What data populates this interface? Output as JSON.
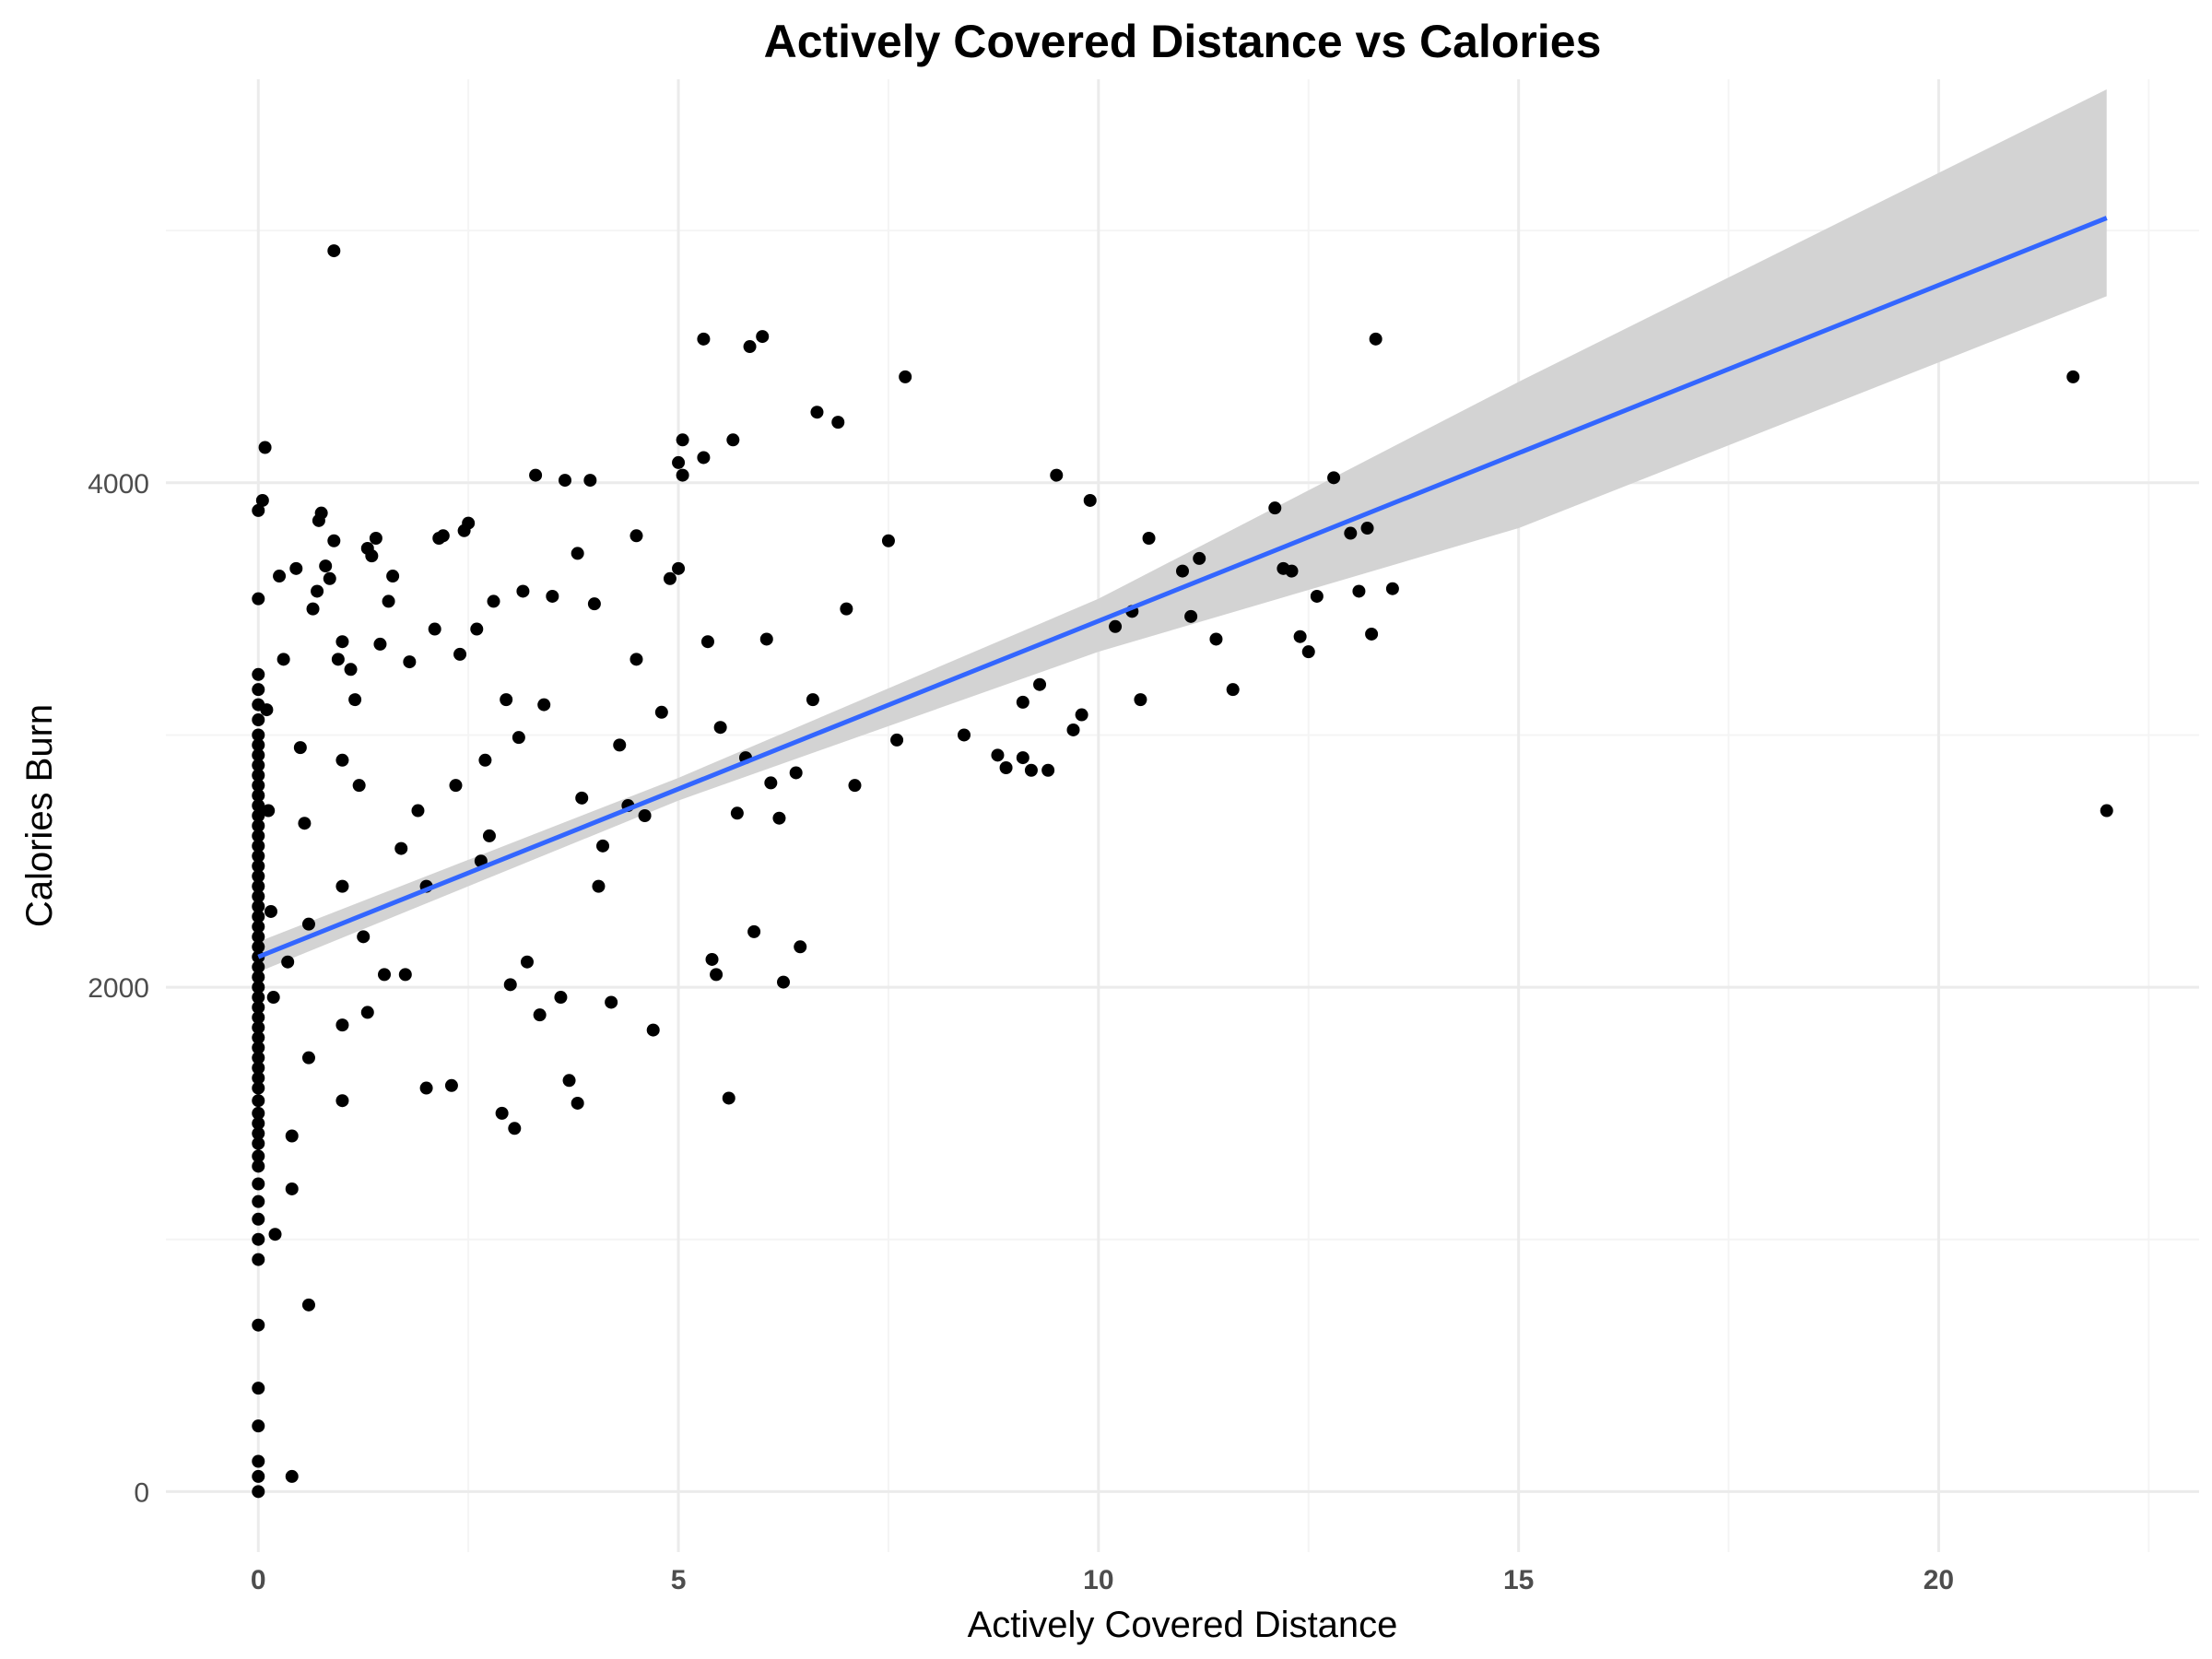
{
  "chart_data": {
    "type": "scatter",
    "title": "Actively Covered Distance vs Calories",
    "xlabel": "Actively Covered Distance",
    "ylabel": "Calories Burn",
    "xlim": [
      -1.1,
      23.1
    ],
    "ylim": [
      -240,
      5600
    ],
    "x_ticks": [
      0,
      5,
      10,
      15,
      20
    ],
    "x_tick_labels": [
      "0",
      "5",
      "10",
      "15",
      "20"
    ],
    "y_ticks": [
      0,
      2000,
      4000
    ],
    "y_tick_labels": [
      "0",
      "2000",
      "4000"
    ],
    "x_minor_ticks": [
      2.5,
      7.5,
      12.5,
      17.5,
      22.5
    ],
    "y_minor_ticks": [
      1000,
      3000,
      5000
    ],
    "grid": true,
    "colors": {
      "points": "#000000",
      "trend_line": "#3366ff",
      "confidence_band": "#d3d3d3",
      "grid_major": "#ebebeb",
      "grid_minor": "#f4f4f4"
    },
    "series": [
      {
        "kind": "points",
        "points": [
          [
            0,
            0
          ],
          [
            0,
            60
          ],
          [
            0,
            120
          ],
          [
            0,
            260
          ],
          [
            0,
            410
          ],
          [
            0,
            660
          ],
          [
            0,
            920
          ],
          [
            0,
            1000
          ],
          [
            0,
            1080
          ],
          [
            0,
            1150
          ],
          [
            0,
            1220
          ],
          [
            0,
            1290
          ],
          [
            0,
            1330
          ],
          [
            0,
            1380
          ],
          [
            0,
            1420
          ],
          [
            0,
            1460
          ],
          [
            0,
            1500
          ],
          [
            0,
            1550
          ],
          [
            0,
            1600
          ],
          [
            0,
            1640
          ],
          [
            0,
            1680
          ],
          [
            0,
            1720
          ],
          [
            0,
            1760
          ],
          [
            0,
            1800
          ],
          [
            0,
            1840
          ],
          [
            0,
            1880
          ],
          [
            0,
            1920
          ],
          [
            0,
            1960
          ],
          [
            0,
            2000
          ],
          [
            0,
            2040
          ],
          [
            0,
            2080
          ],
          [
            0,
            2120
          ],
          [
            0,
            2160
          ],
          [
            0,
            2200
          ],
          [
            0,
            2240
          ],
          [
            0,
            2280
          ],
          [
            0,
            2320
          ],
          [
            0,
            2360
          ],
          [
            0,
            2400
          ],
          [
            0,
            2440
          ],
          [
            0,
            2480
          ],
          [
            0,
            2520
          ],
          [
            0,
            2560
          ],
          [
            0,
            2600
          ],
          [
            0,
            2640
          ],
          [
            0,
            2680
          ],
          [
            0,
            2720
          ],
          [
            0,
            2760
          ],
          [
            0,
            2800
          ],
          [
            0,
            2840
          ],
          [
            0,
            2880
          ],
          [
            0,
            2920
          ],
          [
            0,
            2960
          ],
          [
            0,
            3000
          ],
          [
            0,
            3060
          ],
          [
            0,
            3120
          ],
          [
            0,
            3180
          ],
          [
            0,
            3240
          ],
          [
            0,
            3540
          ],
          [
            0,
            3890
          ],
          [
            0.05,
            3930
          ],
          [
            0.08,
            4140
          ],
          [
            0.1,
            3100
          ],
          [
            0.12,
            2700
          ],
          [
            0.15,
            2300
          ],
          [
            0.18,
            1960
          ],
          [
            0.2,
            1020
          ],
          [
            0.25,
            3630
          ],
          [
            0.3,
            3300
          ],
          [
            0.35,
            2100
          ],
          [
            0.4,
            1410
          ],
          [
            0.4,
            1200
          ],
          [
            0.4,
            60
          ],
          [
            0.45,
            3660
          ],
          [
            0.5,
            2950
          ],
          [
            0.55,
            2650
          ],
          [
            0.6,
            2250
          ],
          [
            0.6,
            1720
          ],
          [
            0.6,
            740
          ],
          [
            0.65,
            3500
          ],
          [
            0.7,
            3570
          ],
          [
            0.72,
            3850
          ],
          [
            0.75,
            3880
          ],
          [
            0.8,
            3670
          ],
          [
            0.85,
            3620
          ],
          [
            0.9,
            3770
          ],
          [
            0.95,
            3300
          ],
          [
            1.0,
            3370
          ],
          [
            1.0,
            2900
          ],
          [
            1.0,
            2400
          ],
          [
            1.0,
            1850
          ],
          [
            1.0,
            1550
          ],
          [
            0.9,
            4920
          ],
          [
            1.1,
            3260
          ],
          [
            1.15,
            3140
          ],
          [
            1.2,
            2800
          ],
          [
            1.25,
            2200
          ],
          [
            1.3,
            1900
          ],
          [
            1.3,
            3740
          ],
          [
            1.35,
            3710
          ],
          [
            1.4,
            3780
          ],
          [
            1.45,
            3360
          ],
          [
            1.5,
            2050
          ],
          [
            1.55,
            3530
          ],
          [
            1.6,
            3630
          ],
          [
            1.7,
            2550
          ],
          [
            1.75,
            2050
          ],
          [
            1.8,
            3290
          ],
          [
            1.9,
            2700
          ],
          [
            2.0,
            2400
          ],
          [
            2.0,
            1600
          ],
          [
            2.1,
            3420
          ],
          [
            2.15,
            3780
          ],
          [
            2.2,
            3790
          ],
          [
            2.3,
            1610
          ],
          [
            2.35,
            2800
          ],
          [
            2.4,
            3320
          ],
          [
            2.45,
            3810
          ],
          [
            2.5,
            3840
          ],
          [
            2.6,
            3420
          ],
          [
            2.65,
            2500
          ],
          [
            2.7,
            2900
          ],
          [
            2.75,
            2600
          ],
          [
            2.8,
            3530
          ],
          [
            2.9,
            1500
          ],
          [
            2.95,
            3140
          ],
          [
            3.0,
            2010
          ],
          [
            3.05,
            1440
          ],
          [
            3.1,
            2990
          ],
          [
            3.15,
            3570
          ],
          [
            3.2,
            2100
          ],
          [
            3.3,
            4030
          ],
          [
            3.35,
            1890
          ],
          [
            3.4,
            3120
          ],
          [
            3.5,
            3550
          ],
          [
            3.6,
            1960
          ],
          [
            3.65,
            4010
          ],
          [
            3.7,
            1630
          ],
          [
            3.8,
            3720
          ],
          [
            3.8,
            1540
          ],
          [
            3.85,
            2750
          ],
          [
            3.95,
            4010
          ],
          [
            4.0,
            3520
          ],
          [
            4.05,
            2400
          ],
          [
            4.1,
            2560
          ],
          [
            4.2,
            1940
          ],
          [
            4.3,
            2960
          ],
          [
            4.4,
            2720
          ],
          [
            4.5,
            3300
          ],
          [
            4.5,
            3790
          ],
          [
            4.6,
            2680
          ],
          [
            4.7,
            1830
          ],
          [
            4.8,
            3090
          ],
          [
            4.9,
            3620
          ],
          [
            5.0,
            3660
          ],
          [
            5.0,
            4080
          ],
          [
            5.05,
            4030
          ],
          [
            5.05,
            4170
          ],
          [
            5.3,
            4100
          ],
          [
            5.3,
            4570
          ],
          [
            5.35,
            3370
          ],
          [
            5.4,
            2110
          ],
          [
            5.45,
            2050
          ],
          [
            5.5,
            3030
          ],
          [
            5.6,
            1560
          ],
          [
            5.65,
            4170
          ],
          [
            5.7,
            2690
          ],
          [
            5.8,
            2910
          ],
          [
            5.85,
            4540
          ],
          [
            5.9,
            2220
          ],
          [
            6.0,
            4580
          ],
          [
            6.05,
            3380
          ],
          [
            6.1,
            2810
          ],
          [
            6.2,
            2670
          ],
          [
            6.25,
            2020
          ],
          [
            6.4,
            2850
          ],
          [
            6.45,
            2160
          ],
          [
            6.6,
            3140
          ],
          [
            6.65,
            4280
          ],
          [
            6.9,
            4240
          ],
          [
            7.0,
            3500
          ],
          [
            7.1,
            2800
          ],
          [
            7.5,
            3770
          ],
          [
            7.6,
            2980
          ],
          [
            7.7,
            4420
          ],
          [
            8.4,
            3000
          ],
          [
            8.8,
            2920
          ],
          [
            8.9,
            2870
          ],
          [
            9.1,
            3130
          ],
          [
            9.1,
            2910
          ],
          [
            9.2,
            2860
          ],
          [
            9.3,
            3200
          ],
          [
            9.4,
            2860
          ],
          [
            9.5,
            4030
          ],
          [
            9.7,
            3020
          ],
          [
            9.8,
            3080
          ],
          [
            9.9,
            3930
          ],
          [
            10.2,
            3430
          ],
          [
            10.4,
            3490
          ],
          [
            10.5,
            3140
          ],
          [
            10.6,
            3780
          ],
          [
            11.0,
            3650
          ],
          [
            11.1,
            3470
          ],
          [
            11.2,
            3700
          ],
          [
            11.4,
            3380
          ],
          [
            11.6,
            3180
          ],
          [
            12.1,
            3900
          ],
          [
            12.2,
            3660
          ],
          [
            12.3,
            3650
          ],
          [
            12.4,
            3390
          ],
          [
            12.5,
            3330
          ],
          [
            12.6,
            3550
          ],
          [
            12.8,
            4020
          ],
          [
            13.0,
            3800
          ],
          [
            13.1,
            3570
          ],
          [
            13.2,
            3820
          ],
          [
            13.25,
            3400
          ],
          [
            13.3,
            4570
          ],
          [
            13.5,
            3580
          ],
          [
            21.6,
            4420
          ],
          [
            22.0,
            2700
          ]
        ]
      },
      {
        "kind": "trend",
        "points": [
          [
            0,
            2120
          ],
          [
            22,
            5050
          ]
        ]
      },
      {
        "kind": "confidence_band",
        "upper": [
          [
            0,
            2180
          ],
          [
            5,
            2830
          ],
          [
            10,
            3540
          ],
          [
            15,
            4400
          ],
          [
            22,
            5560
          ]
        ],
        "lower": [
          [
            0,
            2060
          ],
          [
            5,
            2740
          ],
          [
            10,
            3330
          ],
          [
            15,
            3820
          ],
          [
            22,
            4740
          ]
        ]
      }
    ]
  }
}
